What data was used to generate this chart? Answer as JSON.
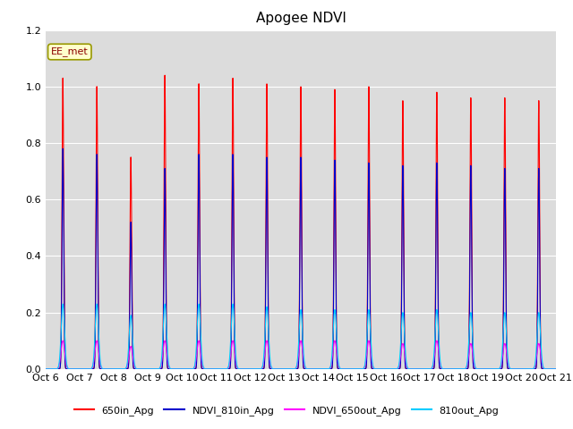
{
  "title": "Apogee NDVI",
  "ylim": [
    0.0,
    1.2
  ],
  "background_color": "#dcdcdc",
  "figure_color": "#ffffff",
  "annotation_text": "EE_met",
  "legend_labels": [
    "650in_Apg",
    "NDVI_810in_Apg",
    "NDVI_650out_Apg",
    "810out_Apg"
  ],
  "series_colors": [
    "#ff0000",
    "#0000cc",
    "#ff00ff",
    "#00ccff"
  ],
  "x_tick_labels": [
    "Oct 6",
    "Oct 7",
    "Oct 8",
    "Oct 9",
    "Oct 10",
    "Oct 11",
    "Oct 12",
    "Oct 13",
    "Oct 14",
    "Oct 15",
    "Oct 16",
    "Oct 17",
    "Oct 18",
    "Oct 19",
    "Oct 20",
    "Oct 21"
  ],
  "num_days": 15,
  "peak_650in": [
    1.03,
    1.0,
    0.75,
    1.04,
    1.01,
    1.03,
    1.01,
    1.0,
    0.99,
    1.0,
    0.95,
    0.98,
    0.96,
    0.96,
    0.95
  ],
  "peak_810in": [
    0.78,
    0.76,
    0.52,
    0.71,
    0.76,
    0.76,
    0.75,
    0.75,
    0.74,
    0.73,
    0.72,
    0.73,
    0.72,
    0.71,
    0.71
  ],
  "peak_650out": [
    0.1,
    0.1,
    0.08,
    0.1,
    0.1,
    0.1,
    0.1,
    0.1,
    0.1,
    0.1,
    0.09,
    0.1,
    0.09,
    0.09,
    0.09
  ],
  "peak_810out": [
    0.23,
    0.23,
    0.19,
    0.23,
    0.23,
    0.23,
    0.22,
    0.21,
    0.21,
    0.21,
    0.2,
    0.21,
    0.2,
    0.2,
    0.2
  ],
  "grid_color": "#ffffff",
  "tick_fontsize": 8
}
